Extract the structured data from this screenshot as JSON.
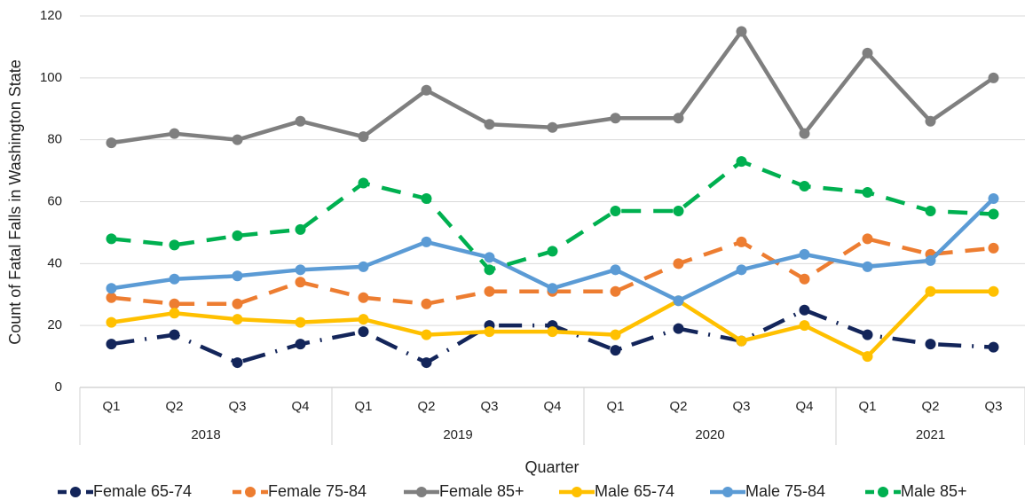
{
  "chart_data": {
    "type": "line",
    "x_label": "Quarter",
    "y_label": "Count of Fatal Falls in Washington State",
    "groups": [
      {
        "label": "2018",
        "categories": [
          "Q1",
          "Q2",
          "Q3",
          "Q4"
        ]
      },
      {
        "label": "2019",
        "categories": [
          "Q1",
          "Q2",
          "Q3",
          "Q4"
        ]
      },
      {
        "label": "2020",
        "categories": [
          "Q1",
          "Q2",
          "Q3",
          "Q4"
        ]
      },
      {
        "label": "2021",
        "categories": [
          "Q1",
          "Q2",
          "Q3"
        ]
      }
    ],
    "ylim": [
      0,
      120
    ],
    "yticks": [
      0,
      20,
      40,
      60,
      80,
      100,
      120
    ],
    "grid": true,
    "legend": "bottom",
    "series": [
      {
        "name": "Female 65-74",
        "color": "#13255a",
        "dash": "dashdot",
        "values": [
          14,
          17,
          8,
          14,
          18,
          8,
          20,
          20,
          12,
          19,
          15,
          25,
          17,
          14,
          13
        ]
      },
      {
        "name": "Female 75-84",
        "color": "#ed7d31",
        "dash": "dashed",
        "values": [
          29,
          27,
          27,
          34,
          29,
          27,
          31,
          31,
          31,
          40,
          47,
          35,
          48,
          43,
          45
        ]
      },
      {
        "name": "Female 85+",
        "color": "#7f7f7f",
        "dash": "solid",
        "values": [
          79,
          82,
          80,
          86,
          81,
          96,
          85,
          84,
          87,
          87,
          115,
          82,
          108,
          86,
          100
        ]
      },
      {
        "name": "Male 65-74",
        "color": "#ffc000",
        "dash": "solid",
        "values": [
          21,
          24,
          22,
          21,
          22,
          17,
          18,
          18,
          17,
          28,
          15,
          20,
          10,
          31,
          31
        ]
      },
      {
        "name": "Male 75-84",
        "color": "#5b9bd5",
        "dash": "solid",
        "values": [
          32,
          35,
          36,
          38,
          39,
          47,
          42,
          32,
          38,
          28,
          38,
          43,
          39,
          41,
          61
        ]
      },
      {
        "name": "Male 85+",
        "color": "#00b050",
        "dash": "dashed",
        "values": [
          48,
          46,
          49,
          51,
          66,
          61,
          38,
          44,
          57,
          57,
          73,
          65,
          63,
          57,
          56
        ]
      }
    ]
  }
}
